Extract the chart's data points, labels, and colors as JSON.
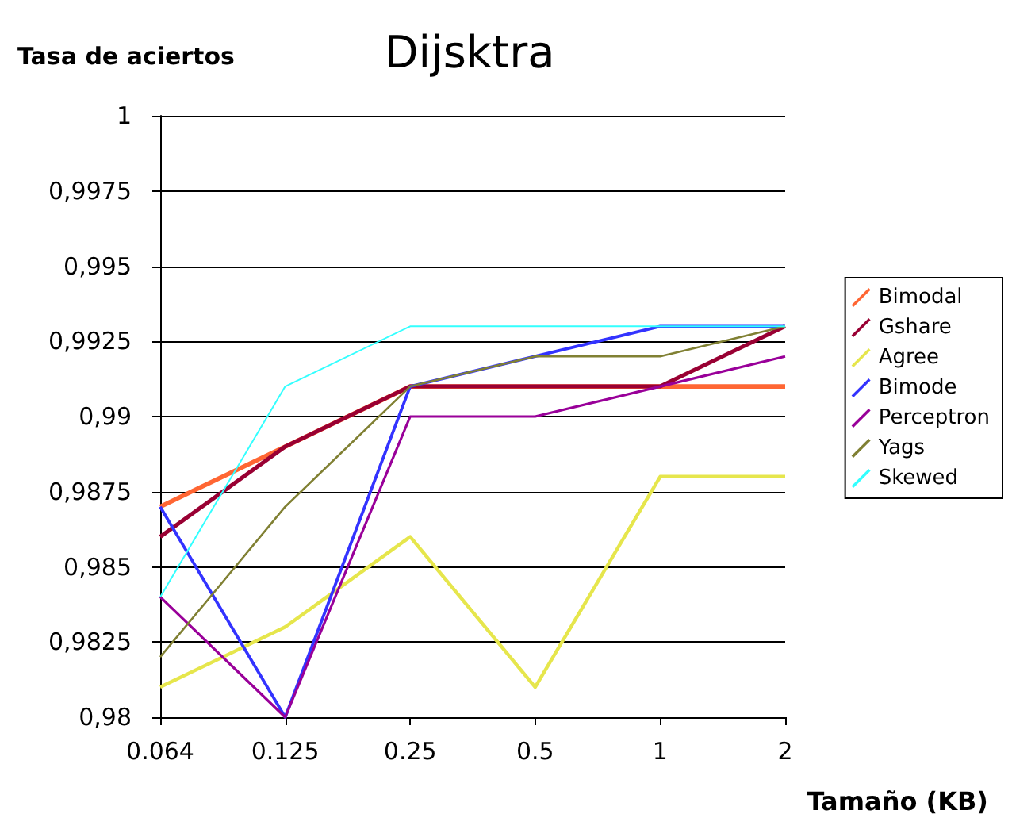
{
  "chart_data": {
    "type": "line",
    "title": "Dijsktra",
    "ylabel": "Tasa de aciertos",
    "xlabel": "Tamaño (KB)",
    "categories": [
      "0.064",
      "0.125",
      "0.25",
      "0.5",
      "1",
      "2"
    ],
    "series": [
      {
        "name": "Bimodal",
        "color": "#ff6633",
        "values": [
          0.987,
          0.989,
          0.991,
          0.991,
          0.991,
          0.991
        ]
      },
      {
        "name": "Gshare",
        "color": "#990033",
        "values": [
          0.986,
          0.989,
          0.991,
          0.991,
          0.991,
          0.993
        ]
      },
      {
        "name": "Agree",
        "color": "#e6e64c",
        "values": [
          0.981,
          0.983,
          0.986,
          0.981,
          0.988,
          0.988
        ]
      },
      {
        "name": "Bimode",
        "color": "#3333ff",
        "values": [
          0.987,
          0.98,
          0.991,
          0.992,
          0.993,
          0.993
        ]
      },
      {
        "name": "Perceptron",
        "color": "#990099",
        "values": [
          0.984,
          0.98,
          0.99,
          0.99,
          0.991,
          0.992
        ]
      },
      {
        "name": "Yags",
        "color": "#808033",
        "values": [
          0.982,
          0.987,
          0.991,
          0.992,
          0.992,
          0.993
        ]
      },
      {
        "name": "Skewed",
        "color": "#33ffff",
        "values": [
          0.984,
          0.991,
          0.993,
          0.993,
          0.993,
          0.993
        ]
      }
    ],
    "ylim": [
      0.98,
      1
    ],
    "yticks": [
      {
        "value": 0.98,
        "label": "0,98"
      },
      {
        "value": 0.9825,
        "label": "0,9825"
      },
      {
        "value": 0.985,
        "label": "0,985"
      },
      {
        "value": 0.9875,
        "label": "0,9875"
      },
      {
        "value": 0.99,
        "label": "0,99"
      },
      {
        "value": 0.9925,
        "label": "0,9925"
      },
      {
        "value": 0.995,
        "label": "0,995"
      },
      {
        "value": 0.9975,
        "label": "0,9975"
      },
      {
        "value": 1,
        "label": "1"
      }
    ],
    "grid": "y",
    "legend": "right",
    "marker": "none",
    "line_style": "solid"
  }
}
